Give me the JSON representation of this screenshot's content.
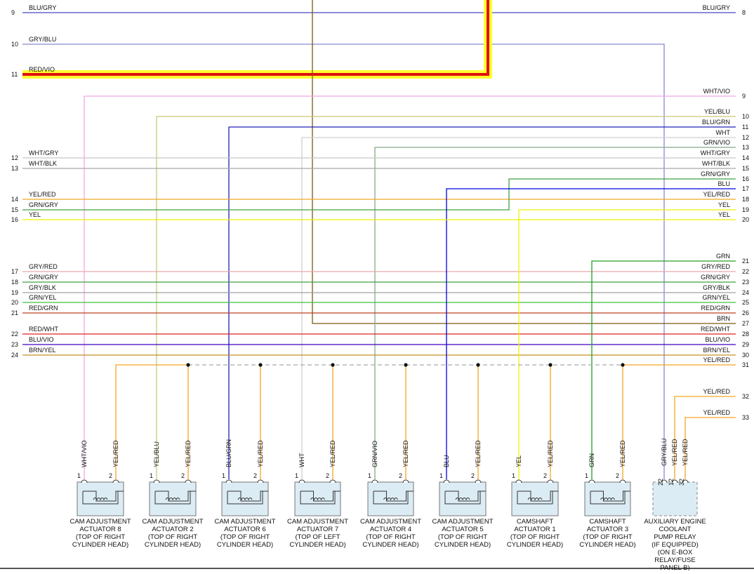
{
  "left_pins": [
    {
      "number": 9,
      "label": "BLU/GRY"
    },
    {
      "number": 10,
      "label": "GRY/BLU"
    },
    {
      "number": 11,
      "label": "RED/VIO"
    },
    {
      "number": 12,
      "label": "WHT/GRY"
    },
    {
      "number": 13,
      "label": "WHT/BLK"
    },
    {
      "number": 14,
      "label": "YEL/RED"
    },
    {
      "number": 15,
      "label": "GRN/GRY"
    },
    {
      "number": 16,
      "label": "YEL"
    },
    {
      "number": 17,
      "label": "GRY/RED"
    },
    {
      "number": 18,
      "label": "GRN/GRY"
    },
    {
      "number": 19,
      "label": "GRY/BLK"
    },
    {
      "number": 20,
      "label": "GRN/YEL"
    },
    {
      "number": 21,
      "label": "RED/GRN"
    },
    {
      "number": 22,
      "label": "RED/WHT"
    },
    {
      "number": 23,
      "label": "BLU/VIO"
    },
    {
      "number": 24,
      "label": "BRN/YEL"
    }
  ],
  "right_pins": [
    {
      "number": 8,
      "label": "BLU/GRY"
    },
    {
      "number": 9,
      "label": "WHT/VIO"
    },
    {
      "number": 10,
      "label": "YEL/BLU"
    },
    {
      "number": 11,
      "label": "BLU/GRN"
    },
    {
      "number": 12,
      "label": "WHT"
    },
    {
      "number": 13,
      "label": "GRN/VIO"
    },
    {
      "number": 14,
      "label": "WHT/GRY"
    },
    {
      "number": 15,
      "label": "WHT/BLK"
    },
    {
      "number": 16,
      "label": "GRN/GRY"
    },
    {
      "number": 17,
      "label": "BLU"
    },
    {
      "number": 18,
      "label": "YEL/RED"
    },
    {
      "number": 19,
      "label": "YEL"
    },
    {
      "number": 20,
      "label": "YEL"
    },
    {
      "number": 21,
      "label": "GRN"
    },
    {
      "number": 22,
      "label": "GRY/RED"
    },
    {
      "number": 23,
      "label": "GRN/GRY"
    },
    {
      "number": 24,
      "label": "GRY/BLK"
    },
    {
      "number": 25,
      "label": "GRN/YEL"
    },
    {
      "number": 26,
      "label": "RED/GRN"
    },
    {
      "number": 27,
      "label": "BRN"
    },
    {
      "number": 28,
      "label": "RED/WHT"
    },
    {
      "number": 29,
      "label": "BLU/VIO"
    },
    {
      "number": 30,
      "label": "BRN/YEL"
    },
    {
      "number": 31,
      "label": "YEL/RED"
    },
    {
      "number": 32,
      "label": "YEL/RED"
    },
    {
      "number": 33,
      "label": "YEL/RED"
    }
  ],
  "components": [
    {
      "pins": [
        {
          "number": 1,
          "wire": "WHT/VIO"
        },
        {
          "number": 2,
          "wire": "YEL/RED"
        }
      ],
      "name_lines": [
        "CAM ADJUSTMENT",
        "ACTUATOR 8",
        "(TOP OF RIGHT",
        "CYLINDER HEAD)"
      ]
    },
    {
      "pins": [
        {
          "number": 1,
          "wire": "YEL/BLU"
        },
        {
          "number": 2,
          "wire": "YEL/RED"
        }
      ],
      "name_lines": [
        "CAM ADJUSTMENT",
        "ACTUATOR 2",
        "(TOP OF RIGHT",
        "CYLINDER HEAD)"
      ]
    },
    {
      "pins": [
        {
          "number": 1,
          "wire": "BLU/GRN"
        },
        {
          "number": 2,
          "wire": "YEL/RED"
        }
      ],
      "name_lines": [
        "CAM ADJUSTMENT",
        "ACTUATOR 6",
        "(TOP OF RIGHT",
        "CYLINDER HEAD)"
      ]
    },
    {
      "pins": [
        {
          "number": 1,
          "wire": "WHT"
        },
        {
          "number": 2,
          "wire": "YEL/RED"
        }
      ],
      "name_lines": [
        "CAM ADJUSTMENT",
        "ACTUATOR 7",
        "(TOP OF LEFT",
        "CYLINDER HEAD)"
      ]
    },
    {
      "pins": [
        {
          "number": 1,
          "wire": "GRN/VIO"
        },
        {
          "number": 2,
          "wire": "YEL/RED"
        }
      ],
      "name_lines": [
        "CAM ADJUSTMENT",
        "ACTUATOR 4",
        "(TOP OF RIGHT",
        "CYLINDER HEAD)"
      ]
    },
    {
      "pins": [
        {
          "number": 1,
          "wire": "BLU"
        },
        {
          "number": 2,
          "wire": "YEL/RED"
        }
      ],
      "name_lines": [
        "CAM ADJUSTMENT",
        "ACTUATOR 5",
        "(TOP OF RIGHT",
        "CYLINDER HEAD)"
      ]
    },
    {
      "pins": [
        {
          "number": 1,
          "wire": "YEL"
        },
        {
          "number": 2,
          "wire": "YEL/RED"
        }
      ],
      "name_lines": [
        "CAMSHAFT",
        "ACTUATOR 1",
        "(TOP OF RIGHT",
        "CYLINDER HEAD)"
      ]
    },
    {
      "pins": [
        {
          "number": 1,
          "wire": "GRN"
        },
        {
          "number": 2,
          "wire": "YEL/RED"
        }
      ],
      "name_lines": [
        "CAMSHAFT",
        "ACTUATOR 3",
        "(TOP OF RIGHT",
        "CYLINDER HEAD)"
      ]
    },
    {
      "pins": [
        {
          "number": 22,
          "wire": "GRY/BLU"
        },
        {
          "number": 12,
          "wire": "YEL/RED"
        },
        {
          "number": 32,
          "wire": "YEL/RED"
        }
      ],
      "name_lines": [
        "AUXILIARY ENGINE",
        "COOLANT",
        "PUMP RELAY",
        "(IF EQUIPPED)",
        "(ON E-BOX",
        "RELAY/FUSE",
        "PANEL B)"
      ]
    }
  ]
}
